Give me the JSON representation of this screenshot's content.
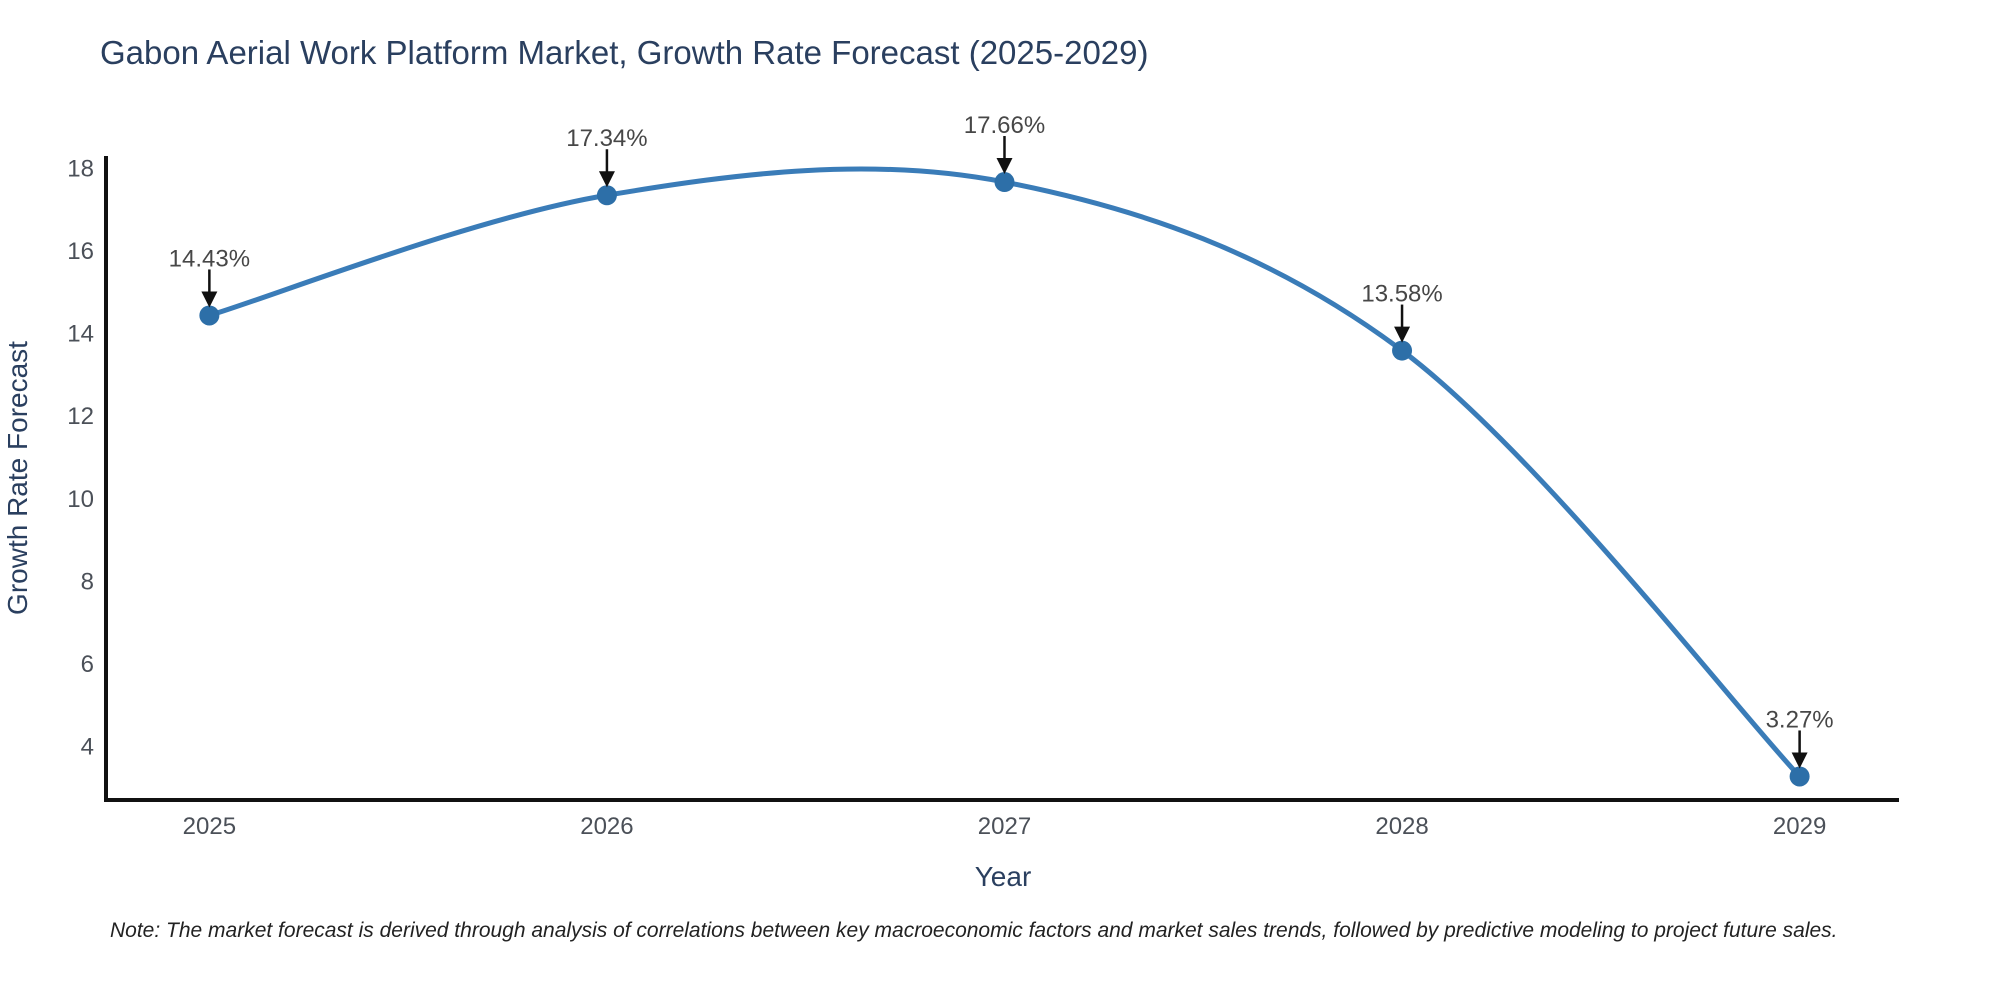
{
  "page": {
    "note": "Note: The market forecast is derived through analysis of correlations between key macroeconomic factors and market sales trends, followed by predictive modeling to project future sales."
  },
  "chart_data": {
    "type": "line",
    "title": "Gabon Aerial Work Platform Market, Growth Rate Forecast (2025-2029)",
    "xlabel": "Year",
    "ylabel": "Growth Rate Forecast",
    "x": [
      2025,
      2026,
      2027,
      2028,
      2029
    ],
    "series": [
      {
        "name": "Growth Rate Forecast",
        "values": [
          14.43,
          17.34,
          17.66,
          13.58,
          3.27
        ]
      }
    ],
    "annotations": [
      "14.43%",
      "17.34%",
      "17.66%",
      "13.58%",
      "3.27%"
    ],
    "xticks": [
      "2025",
      "2026",
      "2027",
      "2028",
      "2029"
    ],
    "yticks": [
      4,
      6,
      8,
      10,
      12,
      14,
      16,
      18
    ],
    "x_range": [
      2024.74,
      2029.25
    ],
    "y_range": [
      2.7,
      18.29
    ],
    "line_shape": "spline",
    "grid": false,
    "legend": "none",
    "markers": true,
    "colors": {
      "line": "#3a7cb8",
      "marker": "#2d6fa8",
      "axis": "#111111",
      "arrow": "#111111",
      "title_text": "#2a3f5f",
      "tick_text": "#4b5058",
      "annotation_text": "#474747"
    }
  }
}
